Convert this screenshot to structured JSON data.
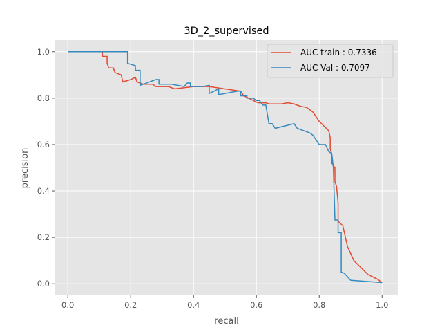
{
  "chart_data": {
    "type": "line",
    "title": "3D_2_supervised",
    "xlabel": "recall",
    "ylabel": "precision",
    "xlim": [
      -0.04,
      1.05
    ],
    "ylim": [
      -0.05,
      1.05
    ],
    "xticks": [
      0.0,
      0.2,
      0.4,
      0.6,
      0.8,
      1.0
    ],
    "yticks": [
      0.0,
      0.2,
      0.4,
      0.6,
      0.8,
      1.0
    ],
    "xtick_labels": [
      "0.0",
      "0.2",
      "0.4",
      "0.6",
      "0.8",
      "1.0"
    ],
    "ytick_labels": [
      "0.0",
      "0.2",
      "0.4",
      "0.6",
      "0.8",
      "1.0"
    ],
    "grid": true,
    "legend_position": "top-right",
    "series": [
      {
        "name": "AUC train : 0.7336",
        "color": "#E24A33",
        "points": [
          [
            0.0,
            1.0
          ],
          [
            0.11,
            1.0
          ],
          [
            0.11,
            0.98
          ],
          [
            0.125,
            0.98
          ],
          [
            0.125,
            0.95
          ],
          [
            0.13,
            0.93
          ],
          [
            0.145,
            0.93
          ],
          [
            0.15,
            0.91
          ],
          [
            0.17,
            0.9
          ],
          [
            0.175,
            0.87
          ],
          [
            0.2,
            0.88
          ],
          [
            0.215,
            0.89
          ],
          [
            0.22,
            0.87
          ],
          [
            0.24,
            0.86
          ],
          [
            0.27,
            0.86
          ],
          [
            0.28,
            0.85
          ],
          [
            0.32,
            0.85
          ],
          [
            0.34,
            0.84
          ],
          [
            0.4,
            0.85
          ],
          [
            0.45,
            0.85
          ],
          [
            0.5,
            0.84
          ],
          [
            0.55,
            0.83
          ],
          [
            0.56,
            0.81
          ],
          [
            0.575,
            0.8
          ],
          [
            0.59,
            0.79
          ],
          [
            0.605,
            0.78
          ],
          [
            0.63,
            0.78
          ],
          [
            0.64,
            0.775
          ],
          [
            0.68,
            0.775
          ],
          [
            0.7,
            0.78
          ],
          [
            0.72,
            0.775
          ],
          [
            0.74,
            0.765
          ],
          [
            0.76,
            0.76
          ],
          [
            0.78,
            0.74
          ],
          [
            0.79,
            0.72
          ],
          [
            0.8,
            0.7
          ],
          [
            0.815,
            0.68
          ],
          [
            0.83,
            0.66
          ],
          [
            0.835,
            0.63
          ],
          [
            0.835,
            0.58
          ],
          [
            0.84,
            0.56
          ],
          [
            0.84,
            0.52
          ],
          [
            0.85,
            0.5
          ],
          [
            0.85,
            0.44
          ],
          [
            0.855,
            0.42
          ],
          [
            0.86,
            0.35
          ],
          [
            0.86,
            0.27
          ],
          [
            0.875,
            0.25
          ],
          [
            0.88,
            0.22
          ],
          [
            0.885,
            0.19
          ],
          [
            0.89,
            0.16
          ],
          [
            0.9,
            0.13
          ],
          [
            0.91,
            0.1
          ],
          [
            0.925,
            0.08
          ],
          [
            0.94,
            0.06
          ],
          [
            0.955,
            0.04
          ],
          [
            0.97,
            0.03
          ],
          [
            0.985,
            0.02
          ],
          [
            1.0,
            0.005
          ]
        ]
      },
      {
        "name": "AUC Val : 0.7097",
        "color": "#348ABD",
        "points": [
          [
            0.0,
            1.0
          ],
          [
            0.19,
            1.0
          ],
          [
            0.19,
            0.95
          ],
          [
            0.215,
            0.94
          ],
          [
            0.215,
            0.92
          ],
          [
            0.23,
            0.92
          ],
          [
            0.23,
            0.855
          ],
          [
            0.28,
            0.88
          ],
          [
            0.29,
            0.88
          ],
          [
            0.29,
            0.86
          ],
          [
            0.31,
            0.86
          ],
          [
            0.33,
            0.86
          ],
          [
            0.37,
            0.85
          ],
          [
            0.38,
            0.865
          ],
          [
            0.39,
            0.865
          ],
          [
            0.39,
            0.85
          ],
          [
            0.43,
            0.85
          ],
          [
            0.45,
            0.855
          ],
          [
            0.45,
            0.82
          ],
          [
            0.48,
            0.84
          ],
          [
            0.48,
            0.815
          ],
          [
            0.5,
            0.82
          ],
          [
            0.54,
            0.83
          ],
          [
            0.55,
            0.83
          ],
          [
            0.55,
            0.81
          ],
          [
            0.57,
            0.81
          ],
          [
            0.57,
            0.8
          ],
          [
            0.59,
            0.8
          ],
          [
            0.6,
            0.79
          ],
          [
            0.61,
            0.79
          ],
          [
            0.62,
            0.77
          ],
          [
            0.63,
            0.77
          ],
          [
            0.64,
            0.69
          ],
          [
            0.65,
            0.69
          ],
          [
            0.66,
            0.67
          ],
          [
            0.72,
            0.69
          ],
          [
            0.73,
            0.67
          ],
          [
            0.75,
            0.66
          ],
          [
            0.77,
            0.65
          ],
          [
            0.78,
            0.64
          ],
          [
            0.79,
            0.62
          ],
          [
            0.8,
            0.6
          ],
          [
            0.82,
            0.6
          ],
          [
            0.83,
            0.57
          ],
          [
            0.84,
            0.56
          ],
          [
            0.845,
            0.5
          ],
          [
            0.85,
            0.275
          ],
          [
            0.86,
            0.275
          ],
          [
            0.86,
            0.22
          ],
          [
            0.87,
            0.22
          ],
          [
            0.87,
            0.05
          ],
          [
            0.88,
            0.045
          ],
          [
            0.89,
            0.03
          ],
          [
            0.9,
            0.015
          ],
          [
            0.92,
            0.013
          ],
          [
            0.95,
            0.01
          ],
          [
            0.97,
            0.008
          ],
          [
            1.0,
            0.005
          ]
        ]
      }
    ]
  }
}
